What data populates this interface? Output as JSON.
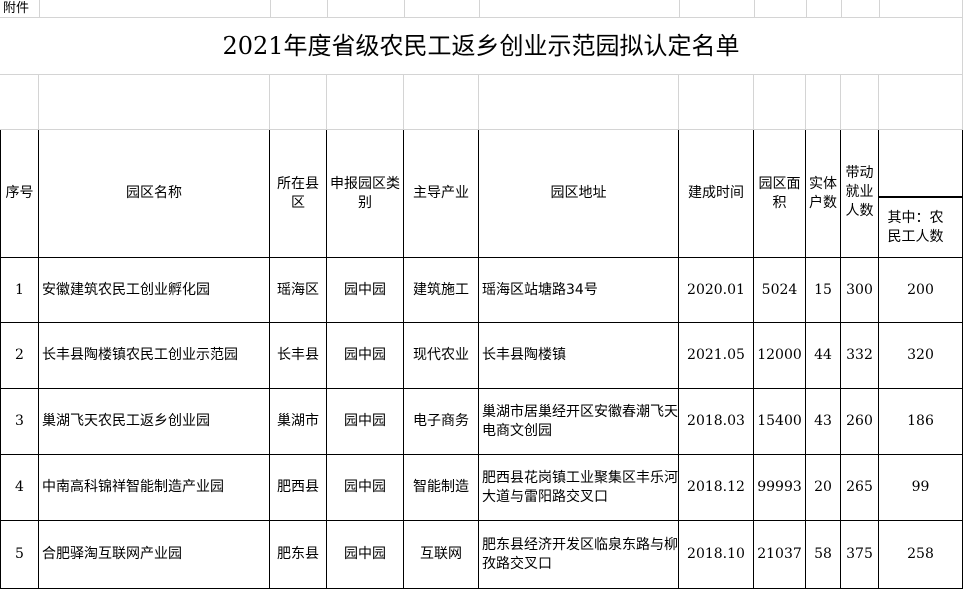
{
  "attachment_label": "附件",
  "title": "2021年度省级农民工返乡创业示范园拟认定名单",
  "headers": {
    "no": "序号",
    "name": "园区名称",
    "county": "所在县区",
    "category": "申报园区类别",
    "industry": "主导产业",
    "address": "园区地址",
    "built": "建成时间",
    "area": "园区面积",
    "households": "实体户数",
    "jobs": "带动就业人数",
    "migrant": "其中：农民工人数"
  },
  "rows": [
    {
      "no": "1",
      "name": "安徽建筑农民工创业孵化园",
      "county": "瑶海区",
      "category": "园中园",
      "industry": "建筑施工",
      "address": "瑶海区站塘路34号",
      "built": "2020.01",
      "area": "5024",
      "households": "15",
      "jobs": "300",
      "migrant": "200"
    },
    {
      "no": "2",
      "name": "长丰县陶楼镇农民工创业示范园",
      "county": "长丰县",
      "category": "园中园",
      "industry": "现代农业",
      "address": "长丰县陶楼镇",
      "built": "2021.05",
      "area": "12000",
      "households": "44",
      "jobs": "332",
      "migrant": "320"
    },
    {
      "no": "3",
      "name": "巢湖飞天农民工返乡创业园",
      "county": "巢湖市",
      "category": "园中园",
      "industry": "电子商务",
      "address": "巢湖市居巢经开区安徽春潮飞天电商文创园",
      "built": "2018.03",
      "area": "15400",
      "households": "43",
      "jobs": "260",
      "migrant": "186"
    },
    {
      "no": "4",
      "name": "中南高科锦祥智能制造产业园",
      "county": "肥西县",
      "category": "园中园",
      "industry": "智能制造",
      "address": "肥西县花岗镇工业聚集区丰乐河大道与雷阳路交叉口",
      "built": "2018.12",
      "area": "99993",
      "households": "20",
      "jobs": "265",
      "migrant": "99"
    },
    {
      "no": "5",
      "name": "合肥驿淘互联网产业园",
      "county": "肥东县",
      "category": "园中园",
      "industry": "互联网",
      "address": "肥东县经济开发区临泉东路与柳孜路交叉口",
      "built": "2018.10",
      "area": "21037",
      "households": "58",
      "jobs": "375",
      "migrant": "258"
    }
  ]
}
